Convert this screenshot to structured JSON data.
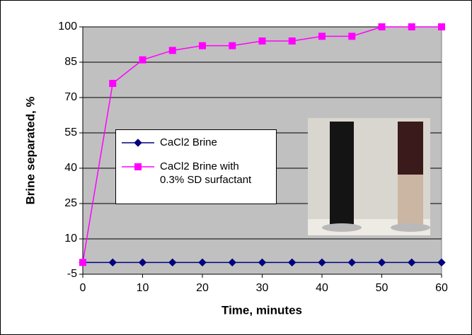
{
  "chart_data": {
    "type": "line",
    "x_label": "Time, minutes",
    "y_label": "Brine separated, %",
    "x": [
      0,
      5,
      10,
      15,
      20,
      25,
      30,
      35,
      40,
      45,
      50,
      55,
      60
    ],
    "series": [
      {
        "name": "CaCl2 Brine",
        "color": "#000080",
        "marker": "diamond",
        "values": [
          0,
          0,
          0,
          0,
          0,
          0,
          0,
          0,
          0,
          0,
          0,
          0,
          0
        ]
      },
      {
        "name": "CaCl2 Brine with 0.3% SD surfactant",
        "color": "#ff00ff",
        "marker": "square",
        "values": [
          0,
          76,
          86,
          90,
          92,
          92,
          94,
          94,
          96,
          96,
          100,
          100,
          100
        ]
      }
    ],
    "xlim": [
      0,
      60
    ],
    "xticks": [
      0,
      10,
      20,
      30,
      40,
      50,
      60
    ],
    "ylim": [
      -5,
      100
    ],
    "yticks": [
      -5,
      10,
      25,
      40,
      55,
      70,
      85,
      100
    ],
    "grid": true
  }
}
